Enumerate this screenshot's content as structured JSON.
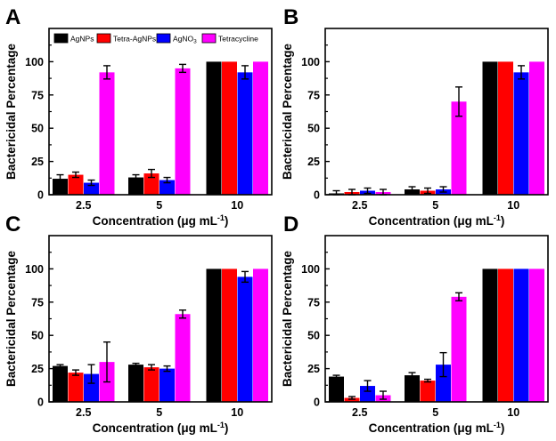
{
  "colors": {
    "AgNPs": "#000000",
    "Tetra-AgNPs": "#ff0000",
    "AgNO3": "#0000ff",
    "Tetracycline": "#ff00ff"
  },
  "legend": {
    "entries": [
      {
        "name": "AgNPs",
        "text": "AgNPs",
        "sub": ""
      },
      {
        "name": "Tetra-AgNPs",
        "text": "Tetra-AgNPs",
        "sub": ""
      },
      {
        "name": "AgNO3",
        "text": "AgNO",
        "sub": "3"
      },
      {
        "name": "Tetracycline",
        "text": "Tetracycline",
        "sub": ""
      }
    ]
  },
  "chart_data": [
    {
      "panel": "A",
      "type": "bar",
      "xlabel": "Concentration (μg mL",
      "xlabel_sup": "-1",
      "xlabel_close": ")",
      "ylabel": "Bactericidal Percentage",
      "ylim": [
        0,
        125
      ],
      "yticks": [
        "0",
        "25",
        "50",
        "75",
        "100"
      ],
      "categories": [
        "2.5",
        "5",
        "10"
      ],
      "series": [
        {
          "name": "AgNPs",
          "values": [
            12,
            13,
            100
          ],
          "errors": [
            3,
            2,
            0
          ]
        },
        {
          "name": "Tetra-AgNPs",
          "values": [
            15,
            16,
            100
          ],
          "errors": [
            2,
            3,
            0
          ]
        },
        {
          "name": "AgNO3",
          "values": [
            9,
            11,
            92
          ],
          "errors": [
            2,
            2,
            5
          ]
        },
        {
          "name": "Tetracycline",
          "values": [
            92,
            95,
            100
          ],
          "errors": [
            5,
            3,
            0
          ]
        }
      ]
    },
    {
      "panel": "B",
      "type": "bar",
      "xlabel": "Concentration (μg mL",
      "xlabel_sup": "-1",
      "xlabel_close": ")",
      "ylabel": "Bactericidal Percentage",
      "ylim": [
        0,
        125
      ],
      "yticks": [
        "0",
        "25",
        "50",
        "75",
        "100"
      ],
      "categories": [
        "2.5",
        "5",
        "10"
      ],
      "series": [
        {
          "name": "AgNPs",
          "values": [
            1,
            4,
            100
          ],
          "errors": [
            2,
            2,
            0
          ]
        },
        {
          "name": "Tetra-AgNPs",
          "values": [
            2,
            3,
            100
          ],
          "errors": [
            2,
            2,
            0
          ]
        },
        {
          "name": "AgNO3",
          "values": [
            3,
            4,
            92
          ],
          "errors": [
            2,
            2,
            5
          ]
        },
        {
          "name": "Tetracycline",
          "values": [
            2,
            70,
            100
          ],
          "errors": [
            2,
            11,
            0
          ]
        }
      ]
    },
    {
      "panel": "C",
      "type": "bar",
      "xlabel": "Concentration (μg mL",
      "xlabel_sup": "-1",
      "xlabel_close": ")",
      "ylabel": "Bactericidal Percentage",
      "ylim": [
        0,
        125
      ],
      "yticks": [
        "0",
        "25",
        "50",
        "75",
        "100"
      ],
      "categories": [
        "2.5",
        "5",
        "10"
      ],
      "series": [
        {
          "name": "AgNPs",
          "values": [
            27,
            28,
            100
          ],
          "errors": [
            1,
            1,
            0
          ]
        },
        {
          "name": "Tetra-AgNPs",
          "values": [
            22,
            26,
            100
          ],
          "errors": [
            2,
            2,
            0
          ]
        },
        {
          "name": "AgNO3",
          "values": [
            21,
            25,
            94
          ],
          "errors": [
            7,
            2,
            4
          ]
        },
        {
          "name": "Tetracycline",
          "values": [
            30,
            66,
            100
          ],
          "errors": [
            15,
            3,
            0
          ]
        }
      ]
    },
    {
      "panel": "D",
      "type": "bar",
      "xlabel": "Concentration (μg mL",
      "xlabel_sup": "-1",
      "xlabel_close": ")",
      "ylabel": "Bactericidal Percentage",
      "ylim": [
        0,
        125
      ],
      "yticks": [
        "0",
        "25",
        "50",
        "75",
        "100"
      ],
      "categories": [
        "2.5",
        "5",
        "10"
      ],
      "series": [
        {
          "name": "AgNPs",
          "values": [
            19,
            20,
            100
          ],
          "errors": [
            1,
            2,
            0
          ]
        },
        {
          "name": "Tetra-AgNPs",
          "values": [
            3,
            16,
            100
          ],
          "errors": [
            1,
            1,
            0
          ]
        },
        {
          "name": "AgNO3",
          "values": [
            12,
            28,
            100
          ],
          "errors": [
            4,
            9,
            0
          ]
        },
        {
          "name": "Tetracycline",
          "values": [
            5,
            79,
            100
          ],
          "errors": [
            3,
            3,
            0
          ]
        }
      ]
    }
  ]
}
